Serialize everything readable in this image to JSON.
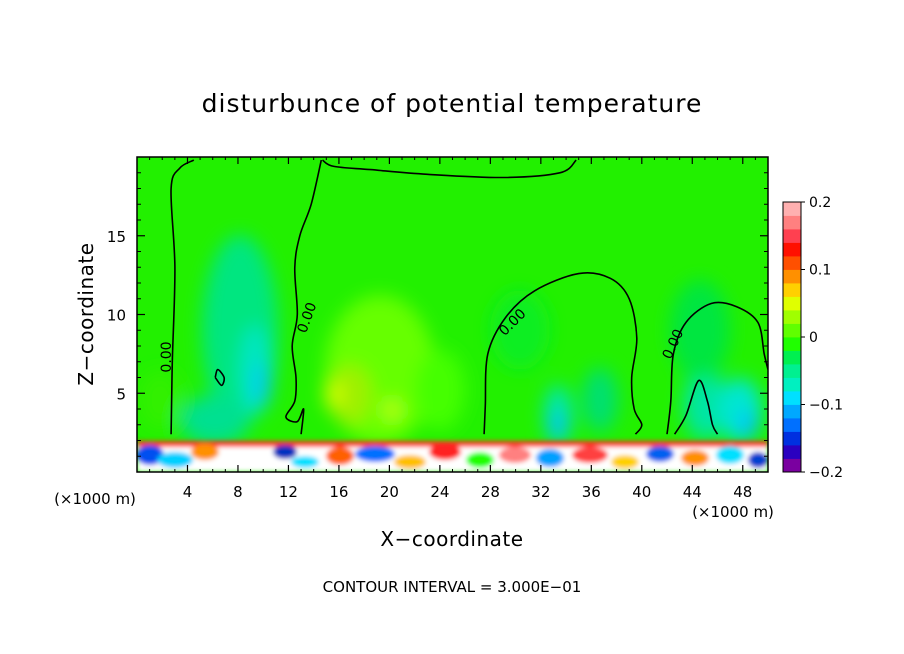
{
  "chart_data": {
    "type": "heatmap",
    "title": "disturbunce of potential temperature",
    "xlabel": "X−coordinate",
    "ylabel": "Z−coordinate",
    "x_units_left": "(×1000 m)",
    "x_units_right": "(×1000 m)",
    "xlim": [
      0,
      50
    ],
    "ylim": [
      0,
      20
    ],
    "x_ticks": [
      4,
      8,
      12,
      16,
      20,
      24,
      28,
      32,
      36,
      40,
      44,
      48
    ],
    "y_ticks": [
      5,
      10,
      15
    ],
    "x_tick_labels": [
      "4",
      "8",
      "12",
      "16",
      "20",
      "24",
      "28",
      "32",
      "36",
      "40",
      "44",
      "48"
    ],
    "y_tick_labels": [
      "5",
      "10",
      "15"
    ],
    "colorbar": {
      "range": [
        -0.2,
        0.2
      ],
      "tick_values": [
        0.2,
        0.1,
        0,
        -0.1,
        -0.2
      ],
      "tick_labels": [
        "0.2",
        "0.1",
        "0",
        "−0.1",
        "−0.2"
      ],
      "colors": [
        "#7a00a0",
        "#2a00c0",
        "#0030e0",
        "#0070ff",
        "#00a8ff",
        "#00e0ff",
        "#00f0c0",
        "#00f090",
        "#00f050",
        "#20ff00",
        "#60ff00",
        "#a0ff00",
        "#e0ff00",
        "#ffd000",
        "#ff9000",
        "#ff5000",
        "#ff1000",
        "#ff4050",
        "#ff8080",
        "#ffb0b0"
      ]
    },
    "contour_labels": [
      {
        "text": "0.00",
        "x": 2.7,
        "y": 7.3,
        "angle": -90
      },
      {
        "text": "0.00",
        "x": 13.8,
        "y": 9.7,
        "angle": -70
      },
      {
        "text": "0.00",
        "x": 30.0,
        "y": 9.3,
        "angle": -45
      },
      {
        "text": "0.00",
        "x": 42.8,
        "y": 8.0,
        "angle": -65
      }
    ],
    "contour_zero": [
      [
        [
          2.7,
          2.4
        ],
        [
          2.8,
          7
        ],
        [
          3.0,
          13
        ],
        [
          2.7,
          18
        ],
        [
          3.4,
          19.3
        ],
        [
          4.5,
          19.8
        ]
      ],
      [
        [
          14.6,
          19.8
        ],
        [
          13.8,
          17
        ],
        [
          12.9,
          15
        ],
        [
          12.5,
          13
        ],
        [
          12.7,
          10
        ],
        [
          12.3,
          8
        ],
        [
          12.6,
          6
        ],
        [
          12.5,
          4.5
        ],
        [
          11.8,
          3.5
        ],
        [
          12.7,
          3.2
        ],
        [
          13.2,
          4.0
        ],
        [
          13.0,
          2.4
        ]
      ],
      [
        [
          14.7,
          19.8
        ],
        [
          15.6,
          19.4
        ],
        [
          18.5,
          19.2
        ],
        [
          23,
          18.9
        ],
        [
          29,
          18.7
        ],
        [
          33.5,
          19.0
        ],
        [
          34.8,
          19.8
        ]
      ],
      [
        [
          27.5,
          2.4
        ],
        [
          27.6,
          4.2
        ],
        [
          27.8,
          7.5
        ],
        [
          29.2,
          9.8
        ],
        [
          31.5,
          11.5
        ],
        [
          35,
          12.6
        ],
        [
          37.5,
          12.3
        ],
        [
          39.0,
          11.0
        ],
        [
          39.6,
          8.5
        ],
        [
          39.2,
          6
        ],
        [
          39.4,
          4
        ],
        [
          40.0,
          3.0
        ],
        [
          39.5,
          2.4
        ]
      ],
      [
        [
          42.0,
          2.4
        ],
        [
          42.3,
          4.5
        ],
        [
          42.5,
          7.5
        ],
        [
          43.5,
          9.5
        ],
        [
          45.5,
          10.7
        ],
        [
          47.5,
          10.5
        ],
        [
          49.2,
          9.5
        ],
        [
          49.7,
          7.5
        ],
        [
          50.0,
          6.5
        ]
      ],
      [
        [
          42.6,
          2.4
        ],
        [
          43.5,
          3.6
        ],
        [
          44.5,
          5.8
        ],
        [
          45.2,
          4.5
        ],
        [
          45.6,
          3.0
        ],
        [
          46.0,
          2.4
        ]
      ],
      [
        [
          6.2,
          6.0
        ],
        [
          6.7,
          5.5
        ],
        [
          6.9,
          6.0
        ],
        [
          6.4,
          6.5
        ],
        [
          6.2,
          6.0
        ]
      ]
    ],
    "footer": "CONTOUR INTERVAL = 3.000E−01"
  }
}
